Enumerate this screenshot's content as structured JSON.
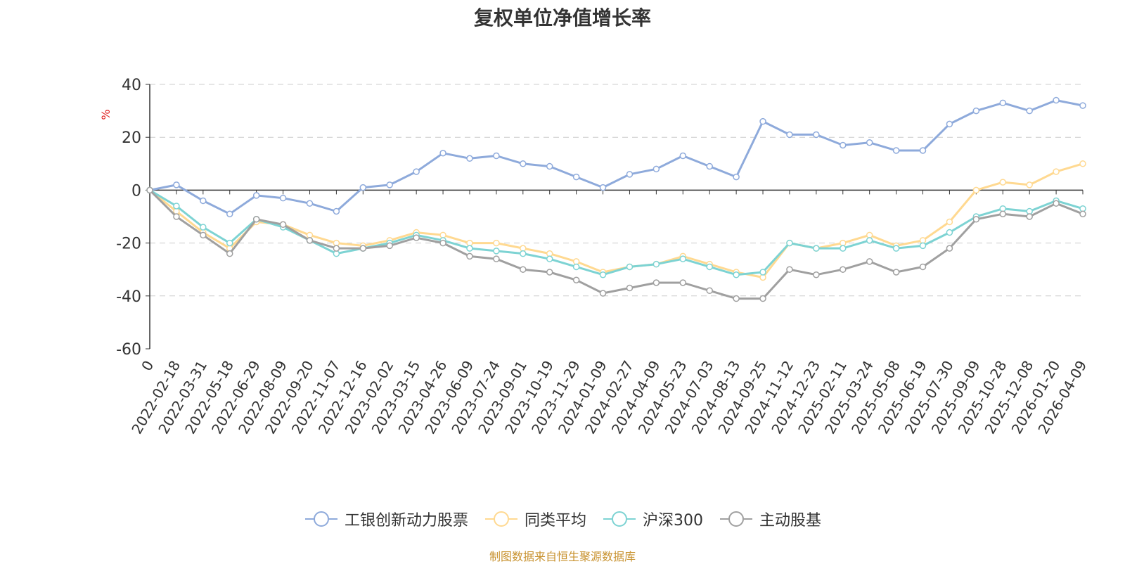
{
  "chart_data": {
    "type": "line",
    "title": "复权单位净值增长率",
    "ylabel": "%",
    "ylim": [
      -60,
      40
    ],
    "yticks": [
      40,
      20,
      0,
      -20,
      -40,
      -60
    ],
    "grid": true,
    "legend_position": "bottom",
    "categories": [
      "0",
      "2022-02-18",
      "2022-03-31",
      "2022-05-18",
      "2022-06-29",
      "2022-08-09",
      "2022-09-20",
      "2022-11-07",
      "2022-12-16",
      "2023-02-02",
      "2023-03-15",
      "2023-04-26",
      "2023-06-09",
      "2023-07-24",
      "2023-09-01",
      "2023-10-19",
      "2023-11-29",
      "2024-01-09",
      "2024-02-27",
      "2024-04-09",
      "2024-05-23",
      "2024-07-03",
      "2024-08-13",
      "2024-09-25",
      "2024-11-12",
      "2024-12-23",
      "2025-02-11",
      "2025-03-24",
      "2025-05-08",
      "2025-06-19",
      "2025-07-30",
      "2025-09-09",
      "2025-10-28",
      "2025-12-08",
      "2026-01-20",
      "2026-04-09"
    ],
    "series": [
      {
        "name": "工银创新动力股票",
        "color": "#8eaadb",
        "values": [
          0,
          2,
          -4,
          -9,
          -2,
          -3,
          -5,
          -8,
          1,
          2,
          7,
          14,
          12,
          13,
          10,
          9,
          5,
          1,
          6,
          8,
          13,
          9,
          5,
          26,
          21,
          21,
          17,
          18,
          15,
          15,
          25,
          30,
          33,
          30,
          34,
          32
        ]
      },
      {
        "name": "同类平均",
        "color": "#ffd991",
        "values": [
          0,
          -8,
          -16,
          -22,
          -12,
          -13,
          -17,
          -20,
          -21,
          -19,
          -16,
          -17,
          -20,
          -20,
          -22,
          -24,
          -27,
          -31,
          -29,
          -28,
          -25,
          -28,
          -31,
          -33,
          -20,
          -22,
          -20,
          -17,
          -21,
          -19,
          -12,
          0,
          3,
          2,
          7,
          10
        ]
      },
      {
        "name": "沪深300",
        "color": "#7dd3d3",
        "values": [
          0,
          -6,
          -14,
          -20,
          -11,
          -14,
          -19,
          -24,
          -22,
          -20,
          -17,
          -19,
          -22,
          -23,
          -24,
          -26,
          -29,
          -32,
          -29,
          -28,
          -26,
          -29,
          -32,
          -31,
          -20,
          -22,
          -22,
          -19,
          -22,
          -21,
          -16,
          -10,
          -7,
          -8,
          -4,
          -7
        ]
      },
      {
        "name": "主动股基",
        "color": "#a0a0a0",
        "values": [
          0,
          -10,
          -17,
          -24,
          -11,
          -13,
          -19,
          -22,
          -22,
          -21,
          -18,
          -20,
          -25,
          -26,
          -30,
          -31,
          -34,
          -39,
          -37,
          -35,
          -35,
          -38,
          -41,
          -41,
          -30,
          -32,
          -30,
          -27,
          -31,
          -29,
          -22,
          -11,
          -9,
          -10,
          -5,
          -9
        ]
      }
    ],
    "source_note": "制图数据来自恒生聚源数据库"
  }
}
